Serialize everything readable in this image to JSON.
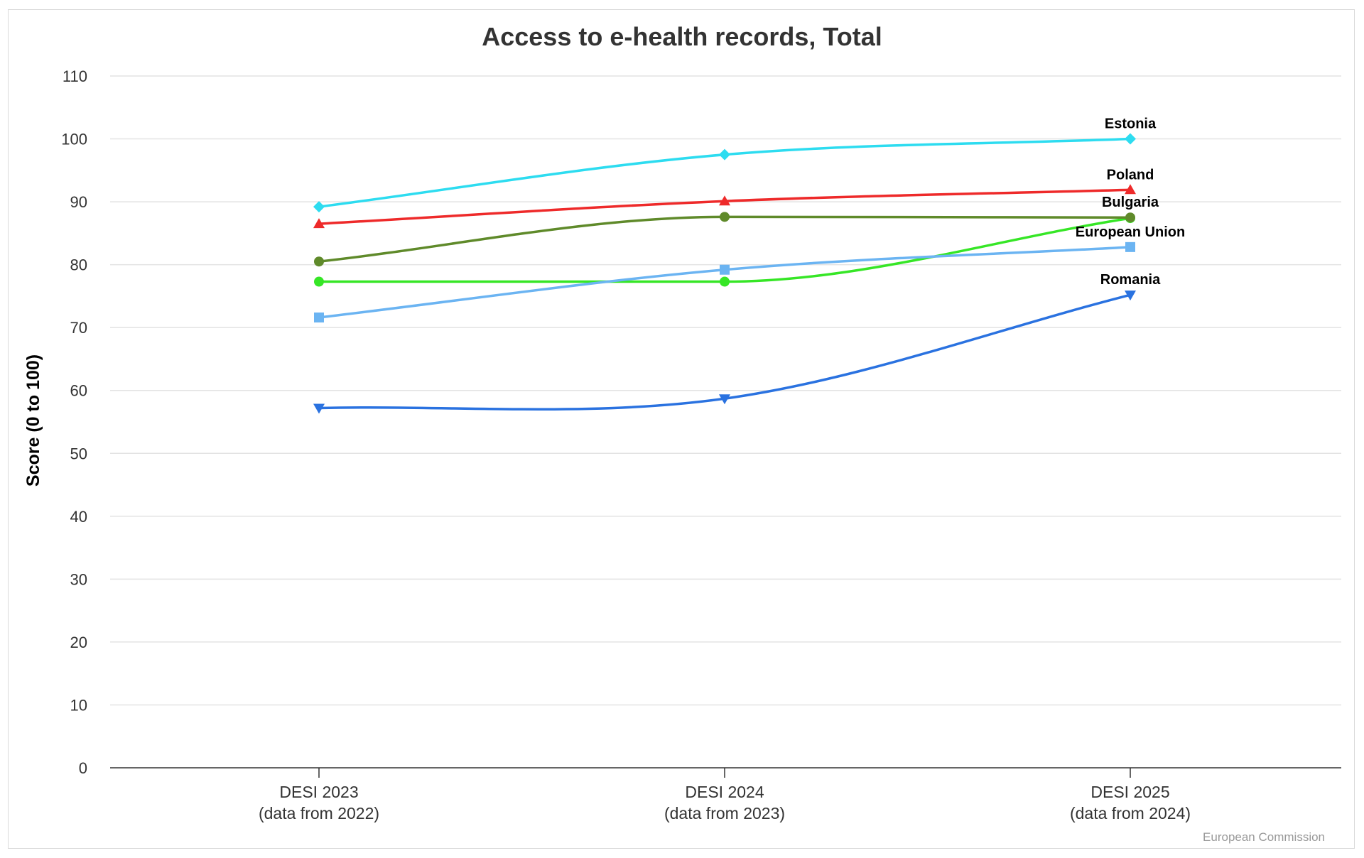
{
  "chart_data": {
    "type": "line",
    "title": "Access to e-health records, Total",
    "xlabel": "",
    "ylabel": "Score (0 to 100)",
    "categories": [
      [
        "DESI 2023",
        "(data from 2022)"
      ],
      [
        "DESI 2024",
        "(data from 2023)"
      ],
      [
        "DESI 2025",
        "(data from 2024)"
      ]
    ],
    "ylim": [
      0,
      110
    ],
    "yticks": [
      0,
      10,
      20,
      30,
      40,
      50,
      60,
      70,
      80,
      90,
      100,
      110
    ],
    "grid": true,
    "legend": "labels at end of lines",
    "series": [
      {
        "name": "Estonia",
        "values": [
          89.2,
          97.5,
          100
        ],
        "color": "#2ddcf0",
        "marker": "diamond"
      },
      {
        "name": "Poland",
        "values": [
          86.5,
          90.1,
          91.9
        ],
        "color": "#ee2a2a",
        "marker": "triangle-up"
      },
      {
        "name": "Bulgaria",
        "values": [
          80.5,
          87.6,
          87.5
        ],
        "color": "#5f8a2a",
        "marker": "circle"
      },
      {
        "name": "European Union",
        "values": [
          71.6,
          79.2,
          82.8
        ],
        "color": "#6bb4f2",
        "marker": "square"
      },
      {
        "name": "Romania",
        "values": [
          57.2,
          58.7,
          75.2
        ],
        "color": "#2a72e0",
        "marker": "triangle-down"
      },
      {
        "name": "",
        "values": [
          77.3,
          77.3,
          87.4
        ],
        "color": "#36e626",
        "marker": "circle"
      }
    ]
  },
  "credit": "European Commission"
}
